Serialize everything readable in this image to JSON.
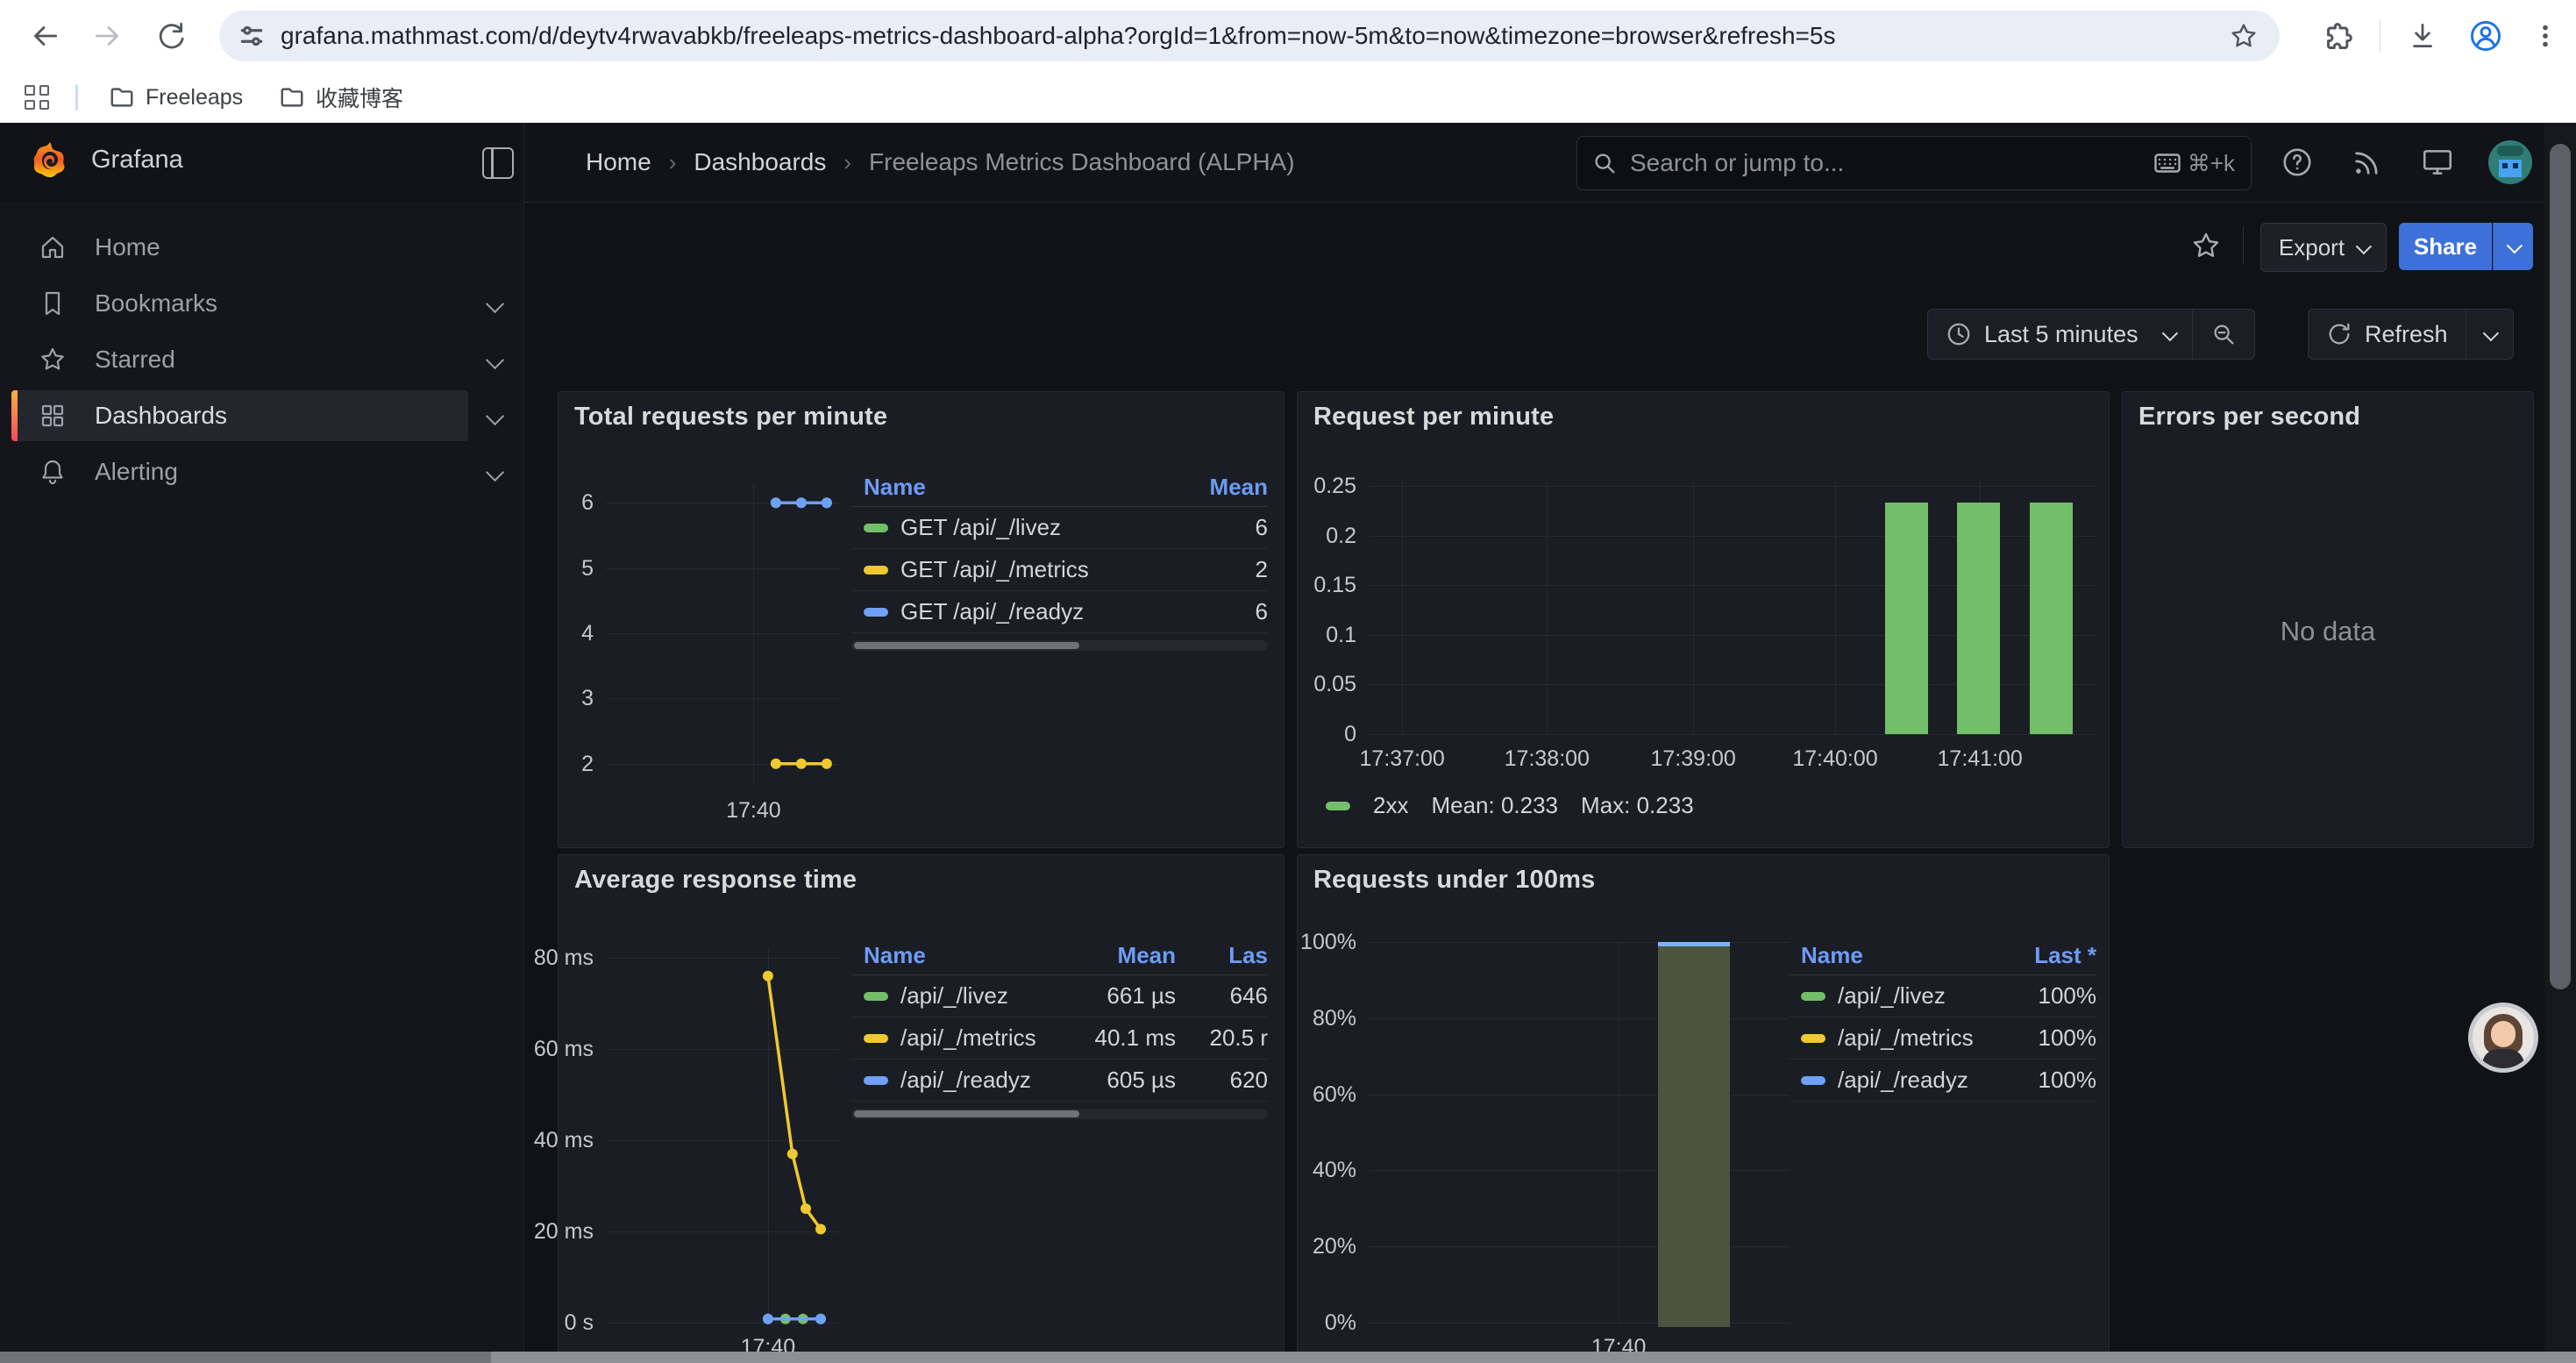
{
  "browser": {
    "url": "grafana.mathmast.com/d/deytv4rwavabkb/freeleaps-metrics-dashboard-alpha?orgId=1&from=now-5m&to=now&timezone=browser&refresh=5s",
    "bookmarks": [
      {
        "label": "Freeleaps"
      },
      {
        "label": "收藏博客"
      }
    ]
  },
  "nav": {
    "brand": "Grafana",
    "breadcrumb": [
      "Home",
      "Dashboards",
      "Freeleaps Metrics Dashboard (ALPHA)"
    ],
    "search_placeholder": "Search or jump to...",
    "search_shortcut": "⌘+k"
  },
  "toolbar": {
    "export_label": "Export",
    "share_label": "Share"
  },
  "timebar": {
    "range_label": "Last 5 minutes",
    "refresh_label": "Refresh"
  },
  "sidebar": {
    "items": [
      {
        "label": "Home",
        "icon": "home",
        "chevron": false,
        "active": false
      },
      {
        "label": "Bookmarks",
        "icon": "bookmark",
        "chevron": true,
        "active": false
      },
      {
        "label": "Starred",
        "icon": "star",
        "chevron": true,
        "active": false
      },
      {
        "label": "Dashboards",
        "icon": "grid",
        "chevron": true,
        "active": true
      },
      {
        "label": "Alerting",
        "icon": "bell",
        "chevron": true,
        "active": false
      }
    ]
  },
  "colors": {
    "green": "#73bf69",
    "yellow": "#eec92f",
    "blue": "#6ea1f7",
    "legend_header": "#6f9bf5",
    "share_blue": "#3d71d9",
    "olive_bar": "#4c543f",
    "bar_cap_blue": "#7eb2f8"
  },
  "panels": {
    "p1": {
      "title": "Total requests per minute",
      "legend": {
        "columns": [
          "Name",
          "Mean"
        ],
        "rows": [
          {
            "color": "green",
            "name": "GET /api/_/livez",
            "values": [
              "6"
            ]
          },
          {
            "color": "yellow",
            "name": "GET /api/_/metrics",
            "values": [
              "2"
            ]
          },
          {
            "color": "blue",
            "name": "GET /api/_/readyz",
            "values": [
              "6"
            ]
          }
        ],
        "scrollbar": true
      }
    },
    "p2": {
      "title": "Request per minute",
      "legend": {
        "series_label": "2xx",
        "mean_label": "Mean: 0.233",
        "max_label": "Max: 0.233"
      }
    },
    "p3": {
      "title": "Errors per second",
      "no_data": "No data"
    },
    "p4": {
      "title": "Average response time",
      "legend": {
        "columns": [
          "Name",
          "Mean",
          "Las"
        ],
        "rows": [
          {
            "color": "green",
            "name": "/api/_/livez",
            "values": [
              "661 µs",
              "646"
            ]
          },
          {
            "color": "yellow",
            "name": "/api/_/metrics",
            "values": [
              "40.1 ms",
              "20.5 r"
            ]
          },
          {
            "color": "blue",
            "name": "/api/_/readyz",
            "values": [
              "605 µs",
              "620"
            ]
          }
        ],
        "scrollbar": true
      }
    },
    "p5": {
      "title": "Requests under 100ms",
      "legend": {
        "columns": [
          "Name",
          "Last *"
        ],
        "rows": [
          {
            "color": "green",
            "name": "/api/_/livez",
            "values": [
              "100%"
            ]
          },
          {
            "color": "yellow",
            "name": "/api/_/metrics",
            "values": [
              "100%"
            ]
          },
          {
            "color": "blue",
            "name": "/api/_/readyz",
            "values": [
              "100%"
            ]
          }
        ],
        "scrollbar": false
      }
    }
  },
  "chart_data": [
    {
      "type": "line",
      "title": "Total requests per minute",
      "ylim": [
        1.66,
        6.3
      ],
      "y_ticks": [
        {
          "value": 6,
          "label": "6"
        },
        {
          "value": 5,
          "label": "5"
        },
        {
          "value": 4,
          "label": "4"
        },
        {
          "value": 3,
          "label": "3"
        },
        {
          "value": 2,
          "label": "2"
        }
      ],
      "x_ticks": [
        {
          "x": 0.633,
          "label": "17:40"
        }
      ],
      "series": [
        {
          "name": "GET /api/_/livez",
          "color": "#73bf69",
          "mean": 6,
          "points": [
            {
              "x": 0.729,
              "v": 6
            },
            {
              "x": 0.838,
              "v": 6
            },
            {
              "x": 0.947,
              "v": 6
            }
          ]
        },
        {
          "name": "GET /api/_/metrics",
          "color": "#eec92f",
          "mean": 2,
          "points": [
            {
              "x": 0.729,
              "v": 2
            },
            {
              "x": 0.838,
              "v": 2
            },
            {
              "x": 0.947,
              "v": 2
            }
          ]
        },
        {
          "name": "GET /api/_/readyz",
          "color": "#6ea1f7",
          "mean": 6,
          "points": [
            {
              "x": 0.729,
              "v": 6
            },
            {
              "x": 0.838,
              "v": 6
            },
            {
              "x": 0.947,
              "v": 6
            }
          ]
        }
      ]
    },
    {
      "type": "bar",
      "title": "Request per minute",
      "ylim": [
        0,
        0.2553
      ],
      "y_ticks": [
        {
          "value": 0.25,
          "label": "0.25"
        },
        {
          "value": 0.2,
          "label": "0.2"
        },
        {
          "value": 0.15,
          "label": "0.15"
        },
        {
          "value": 0.1,
          "label": "0.1"
        },
        {
          "value": 0.05,
          "label": "0.05"
        },
        {
          "value": 0,
          "label": "0"
        }
      ],
      "x_ticks": [
        {
          "x": 0.046,
          "label": "17:37:00"
        },
        {
          "x": 0.245,
          "label": "17:38:00"
        },
        {
          "x": 0.446,
          "label": "17:39:00"
        },
        {
          "x": 0.641,
          "label": "17:40:00"
        },
        {
          "x": 0.84,
          "label": "17:41:00"
        }
      ],
      "bar_color": "#73bf69",
      "bars": [
        {
          "x": 0.71,
          "w": 0.059,
          "value": 0.233
        },
        {
          "x": 0.808,
          "w": 0.059,
          "value": 0.233
        },
        {
          "x": 0.908,
          "w": 0.059,
          "value": 0.233
        }
      ],
      "legend": {
        "series": "2xx",
        "mean": 0.233,
        "max": 0.233
      }
    },
    {
      "type": "line",
      "title": "Average response time",
      "unit": "ms",
      "ylim": [
        0,
        82.1
      ],
      "y_ticks": [
        {
          "value": 80,
          "label": "80 ms"
        },
        {
          "value": 60,
          "label": "60 ms"
        },
        {
          "value": 40,
          "label": "40 ms"
        },
        {
          "value": 20,
          "label": "20 ms"
        },
        {
          "value": 0,
          "label": "0 s"
        }
      ],
      "x_ticks": [
        {
          "x": 0.695,
          "label": "17:40"
        }
      ],
      "series": [
        {
          "name": "/api/_/metrics",
          "color": "#eec92f",
          "mean_ms": 40.1,
          "points": [
            {
              "x": 0.695,
              "v": 76
            },
            {
              "x": 0.8,
              "v": 37
            },
            {
              "x": 0.857,
              "v": 25
            },
            {
              "x": 0.921,
              "v": 20.5
            }
          ]
        },
        {
          "name": "/api/_/livez",
          "color": "#73bf69",
          "mean_us": 661,
          "points": [
            {
              "x": 0.695,
              "v": 0.8
            },
            {
              "x": 0.77,
              "v": 0.8
            },
            {
              "x": 0.845,
              "v": 0.8
            },
            {
              "x": 0.921,
              "v": 0.8
            }
          ]
        },
        {
          "name": "/api/_/readyz",
          "color": "#6ea1f7",
          "mean_us": 605,
          "points": [
            {
              "x": 0.695,
              "v": 0.8
            },
            {
              "x": 0.921,
              "v": 0.8
            }
          ]
        }
      ]
    },
    {
      "type": "bar",
      "title": "Requests under 100ms",
      "unit": "%",
      "ylim": [
        0,
        100
      ],
      "y_ticks": [
        {
          "value": 100,
          "label": "100%"
        },
        {
          "value": 80,
          "label": "80%"
        },
        {
          "value": 60,
          "label": "60%"
        },
        {
          "value": 40,
          "label": "40%"
        },
        {
          "value": 20,
          "label": "20%"
        },
        {
          "value": 0,
          "label": "0%"
        }
      ],
      "x_ticks": [
        {
          "x": 0.594,
          "label": "17:40"
        }
      ],
      "bar_color": "#4c543f",
      "bar_cap": "#7eb2f8",
      "bars": [
        {
          "x": 0.6875,
          "w": 0.171,
          "value": 100
        }
      ],
      "legend": {
        "series": [
          "/api/_/livez",
          "/api/_/metrics",
          "/api/_/readyz"
        ],
        "last": [
          100,
          100,
          100
        ]
      }
    }
  ]
}
